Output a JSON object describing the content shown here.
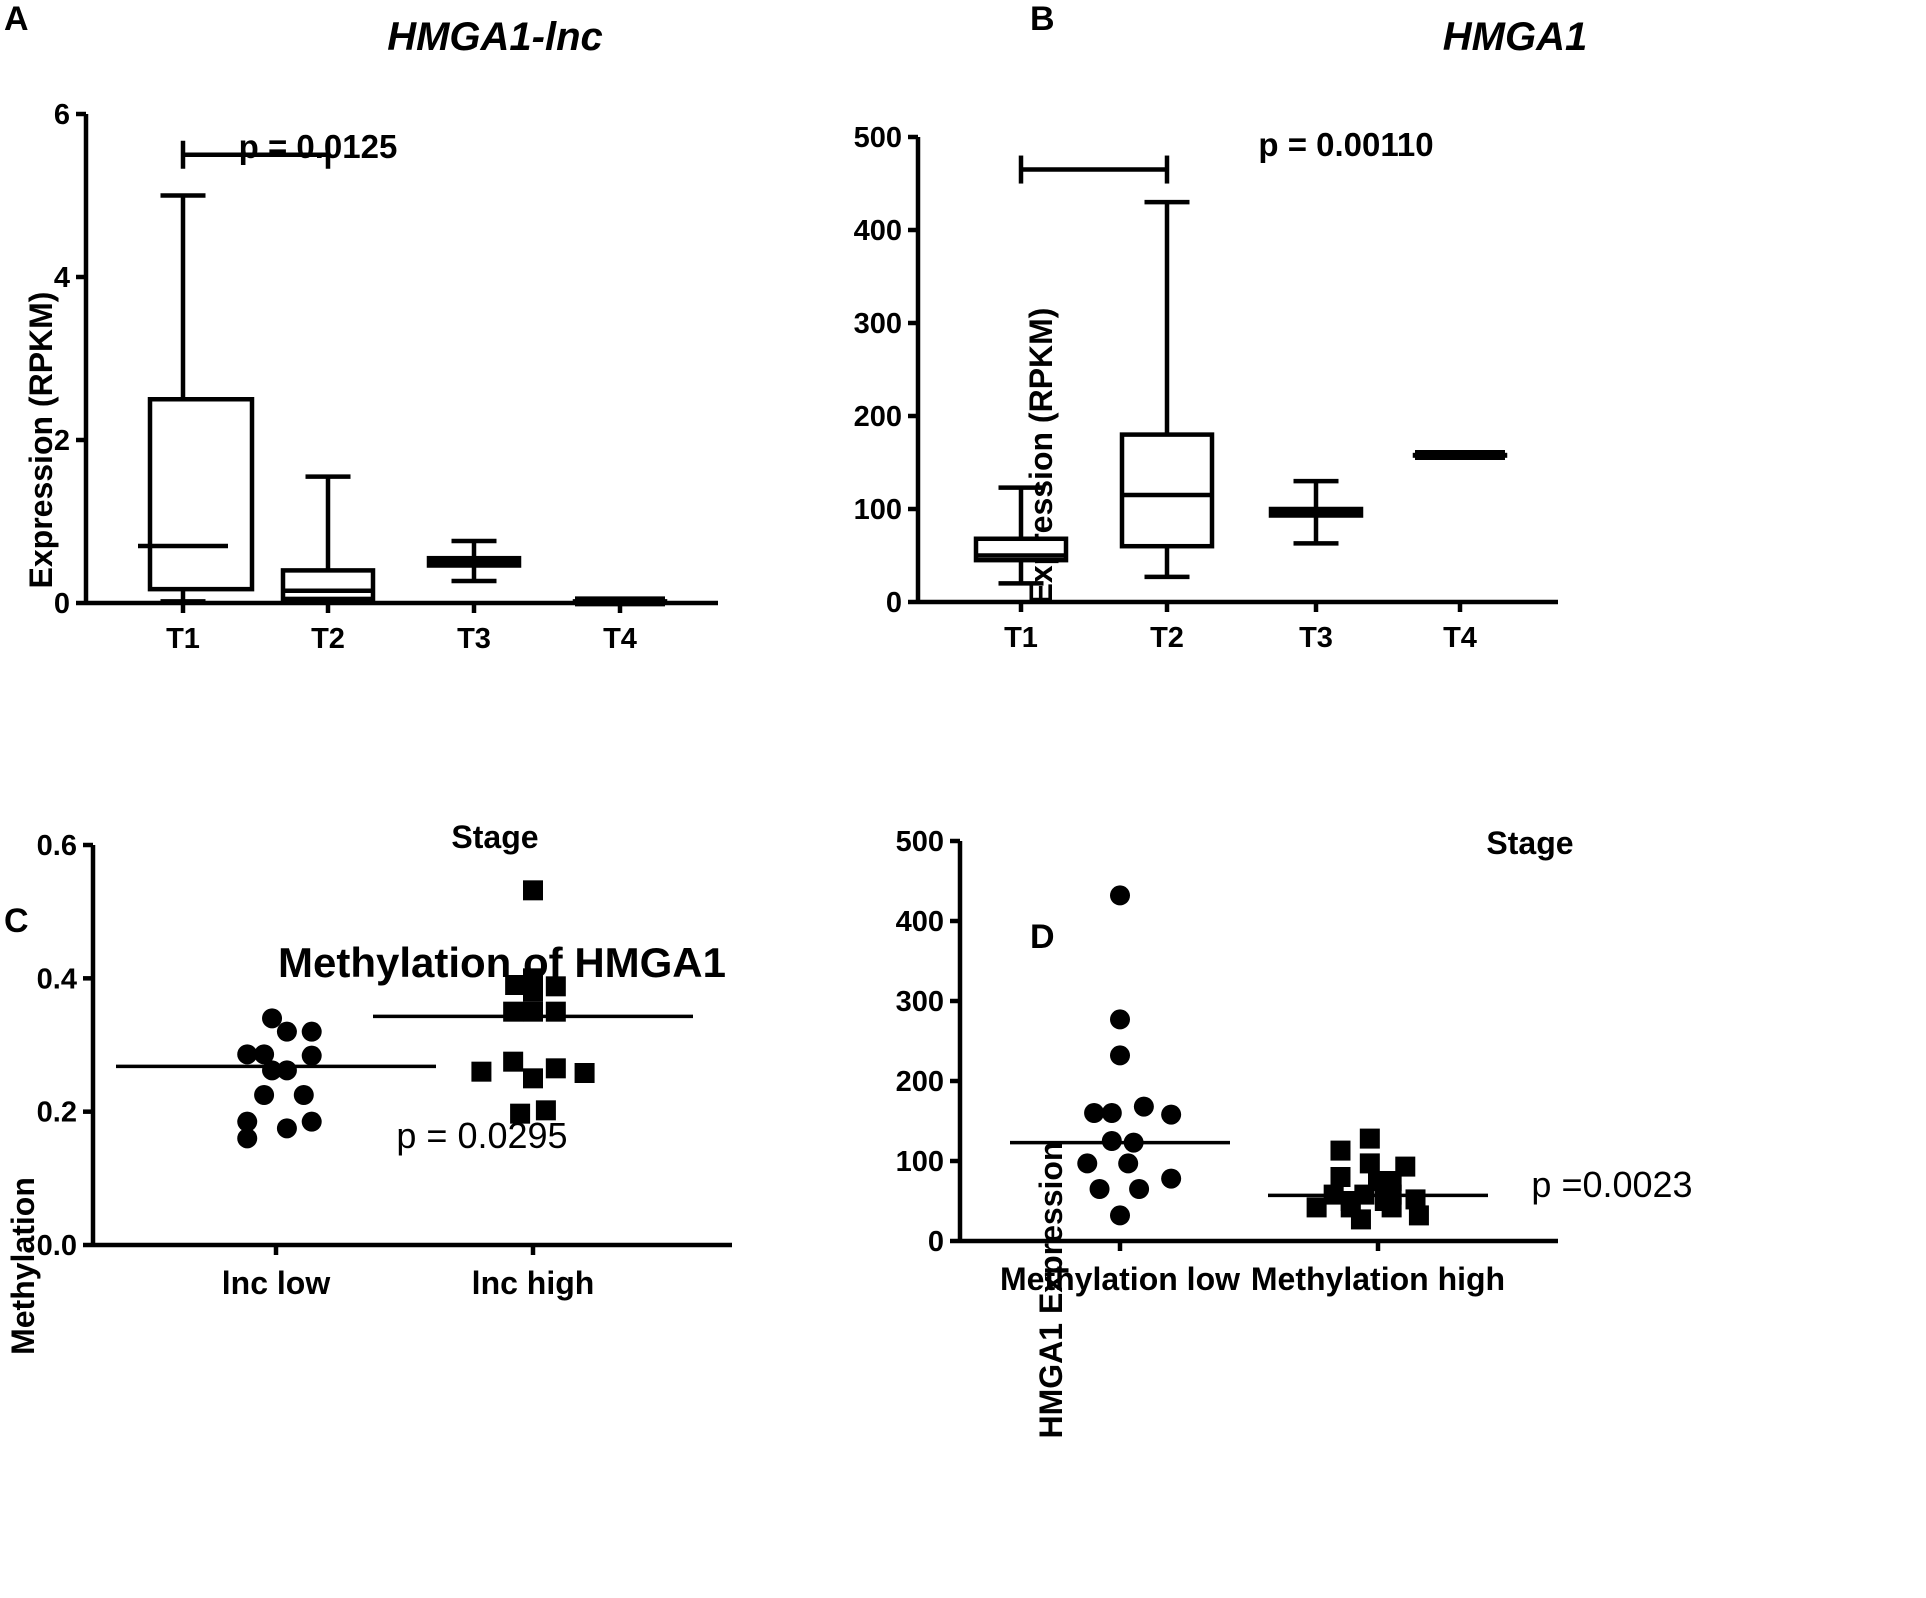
{
  "chart_data": [
    {
      "panel": "A",
      "type": "box",
      "title": "HMGA1-lnc",
      "xlabel": "Stage",
      "ylabel": "Expression (RPKM)",
      "ylim": [
        0,
        6
      ],
      "yticks": [
        0,
        2,
        4,
        6
      ],
      "categories": [
        "T1",
        "T2",
        "T3",
        "T4"
      ],
      "boxes": [
        {
          "label": "T1",
          "min": 0.02,
          "q1": 0.17,
          "median": 0.7,
          "q3": 2.5,
          "max": 5.0
        },
        {
          "label": "T2",
          "min": 0.02,
          "q1": 0.05,
          "median": 0.15,
          "q3": 0.4,
          "max": 1.55
        },
        {
          "label": "T3",
          "min": 0.27,
          "q1": 0.46,
          "median": 0.5,
          "q3": 0.55,
          "max": 0.76
        },
        {
          "label": "T4",
          "min": 0.02,
          "q1": 0.02,
          "median": 0.02,
          "q3": 0.02,
          "max": 0.02
        }
      ],
      "comparison": {
        "from": "T1",
        "to": "T2",
        "label": "p = 0.0125",
        "y": 5.5
      }
    },
    {
      "panel": "B",
      "type": "box",
      "title": "HMGA1",
      "xlabel": "Stage",
      "ylabel": "Expression (RPKM)",
      "ylim": [
        0,
        500
      ],
      "yticks": [
        0,
        100,
        200,
        300,
        400,
        500
      ],
      "categories": [
        "T1",
        "T2",
        "T3",
        "T4"
      ],
      "boxes": [
        {
          "label": "T1",
          "min": 20,
          "q1": 45,
          "median": 50,
          "q3": 68,
          "max": 123
        },
        {
          "label": "T2",
          "min": 27,
          "q1": 60,
          "median": 115,
          "q3": 180,
          "max": 430
        },
        {
          "label": "T3",
          "min": 63,
          "q1": 93,
          "median": 97,
          "q3": 100,
          "max": 130
        },
        {
          "label": "T4",
          "min": 158,
          "q1": 158,
          "median": 158,
          "q3": 158,
          "max": 158
        }
      ],
      "comparison": {
        "from": "T1",
        "to": "T2",
        "label": "p = 0.00110",
        "y": 465
      }
    },
    {
      "panel": "C",
      "type": "scatter",
      "title": "Methylation of HMGA1",
      "xlabel": "",
      "ylabel": "Methylation",
      "ylim": [
        0,
        0.6
      ],
      "yticks": [
        0.0,
        0.2,
        0.4,
        0.6
      ],
      "ytick_labels": [
        "0.0",
        "0.2",
        "0.4",
        "0.6"
      ],
      "categories": [
        "lnc low",
        "lnc high"
      ],
      "annotation": "p = 0.0295",
      "groups": [
        {
          "name": "lnc low",
          "marker": "circle",
          "mean": 0.268,
          "points": [
            {
              "dx": -0.04,
              "y": 0.34
            },
            {
              "dx": -0.29,
              "y": 0.286
            },
            {
              "dx": -0.12,
              "y": 0.286
            },
            {
              "dx": 0.11,
              "y": 0.32
            },
            {
              "dx": 0.36,
              "y": 0.32
            },
            {
              "dx": -0.04,
              "y": 0.262
            },
            {
              "dx": 0.11,
              "y": 0.262
            },
            {
              "dx": 0.36,
              "y": 0.284
            },
            {
              "dx": -0.12,
              "y": 0.225
            },
            {
              "dx": 0.28,
              "y": 0.225
            },
            {
              "dx": -0.29,
              "y": 0.185
            },
            {
              "dx": 0.36,
              "y": 0.185
            },
            {
              "dx": 0.11,
              "y": 0.175
            },
            {
              "dx": -0.29,
              "y": 0.16
            }
          ]
        },
        {
          "name": "lnc high",
          "marker": "square",
          "mean": 0.343,
          "points": [
            {
              "dx": 0.0,
              "y": 0.532
            },
            {
              "dx": -0.18,
              "y": 0.39
            },
            {
              "dx": 0.0,
              "y": 0.4
            },
            {
              "dx": 0.23,
              "y": 0.388
            },
            {
              "dx": 0.0,
              "y": 0.38
            },
            {
              "dx": -0.2,
              "y": 0.35
            },
            {
              "dx": 0.0,
              "y": 0.35
            },
            {
              "dx": 0.23,
              "y": 0.35
            },
            {
              "dx": -0.2,
              "y": 0.275
            },
            {
              "dx": -0.52,
              "y": 0.26
            },
            {
              "dx": 0.0,
              "y": 0.25
            },
            {
              "dx": 0.23,
              "y": 0.265
            },
            {
              "dx": 0.52,
              "y": 0.258
            },
            {
              "dx": -0.13,
              "y": 0.197
            },
            {
              "dx": 0.13,
              "y": 0.202
            }
          ]
        }
      ]
    },
    {
      "panel": "D",
      "type": "scatter",
      "title": "",
      "xlabel": "",
      "ylabel": "HMGA1 Expression",
      "ylim": [
        0,
        500
      ],
      "yticks": [
        0,
        100,
        200,
        300,
        400,
        500
      ],
      "categories": [
        "Methylation low",
        "Methylation high"
      ],
      "annotation": "p =0.0023",
      "groups": [
        {
          "name": "Methylation low",
          "marker": "circle",
          "mean": 123,
          "points": [
            {
              "dx": 0.0,
              "y": 432
            },
            {
              "dx": 0.0,
              "y": 277
            },
            {
              "dx": 0.0,
              "y": 232
            },
            {
              "dx": 0.35,
              "y": 168
            },
            {
              "dx": -0.38,
              "y": 160
            },
            {
              "dx": -0.12,
              "y": 160
            },
            {
              "dx": 0.75,
              "y": 158
            },
            {
              "dx": -0.12,
              "y": 125
            },
            {
              "dx": 0.2,
              "y": 123
            },
            {
              "dx": -0.48,
              "y": 97
            },
            {
              "dx": 0.12,
              "y": 97
            },
            {
              "dx": 0.75,
              "y": 78
            },
            {
              "dx": -0.3,
              "y": 65
            },
            {
              "dx": 0.28,
              "y": 65
            },
            {
              "dx": 0.0,
              "y": 32
            }
          ]
        },
        {
          "name": "Methylation high",
          "marker": "square",
          "mean": 57,
          "points": [
            {
              "dx": -0.12,
              "y": 128
            },
            {
              "dx": -0.55,
              "y": 113
            },
            {
              "dx": -0.12,
              "y": 97
            },
            {
              "dx": 0.4,
              "y": 93
            },
            {
              "dx": -0.55,
              "y": 80
            },
            {
              "dx": 0.0,
              "y": 75
            },
            {
              "dx": 0.2,
              "y": 75
            },
            {
              "dx": -0.65,
              "y": 58
            },
            {
              "dx": -0.2,
              "y": 58
            },
            {
              "dx": 0.2,
              "y": 58
            },
            {
              "dx": -0.4,
              "y": 50
            },
            {
              "dx": 0.1,
              "y": 50
            },
            {
              "dx": 0.55,
              "y": 52
            },
            {
              "dx": -0.9,
              "y": 42
            },
            {
              "dx": -0.4,
              "y": 42
            },
            {
              "dx": 0.2,
              "y": 42
            },
            {
              "dx": 0.6,
              "y": 32
            },
            {
              "dx": -0.25,
              "y": 27
            }
          ]
        }
      ]
    }
  ]
}
